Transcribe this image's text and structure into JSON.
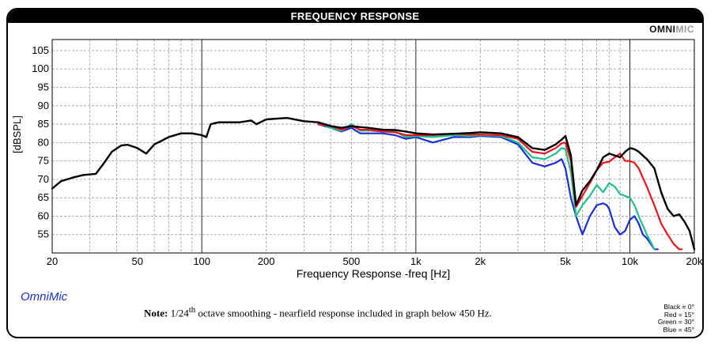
{
  "title": "FREQUENCY RESPONSE",
  "logo": {
    "part1": "OMNI",
    "part2": "MIC"
  },
  "brand": "OmniMic",
  "note": {
    "label": "Note:",
    "text_before": " 1/24",
    "superscript": "th",
    "text_after": " octave smoothing - nearfield response included in graph below 450 Hz."
  },
  "legend": [
    "Black = 0°",
    "Red = 15°",
    "Green = 30°",
    "Blue = 45°"
  ],
  "colors": {
    "black": "#000000",
    "red": "#e8161b",
    "green": "#1fbf8f",
    "blue": "#1a2fd6",
    "grid": "#9a9a9a"
  },
  "chart_data": {
    "type": "line",
    "xscale": "log",
    "xlim": [
      20,
      20000
    ],
    "ylim": [
      50,
      108
    ],
    "xlabel": "Frequency Response -freq [Hz]",
    "ylabel": "[dBSPL]",
    "x_ticks": [
      {
        "value": 20,
        "label": "20"
      },
      {
        "value": 50,
        "label": "50"
      },
      {
        "value": 100,
        "label": "100"
      },
      {
        "value": 200,
        "label": "200"
      },
      {
        "value": 500,
        "label": "500"
      },
      {
        "value": 1000,
        "label": "1k"
      },
      {
        "value": 2000,
        "label": "2k"
      },
      {
        "value": 5000,
        "label": "5k"
      },
      {
        "value": 10000,
        "label": "10k"
      },
      {
        "value": 20000,
        "label": "20k"
      }
    ],
    "y_ticks": [
      55,
      60,
      65,
      70,
      75,
      80,
      85,
      90,
      95,
      100,
      105
    ],
    "series": [
      {
        "name": "Black = 0°",
        "color": "#000000",
        "x": [
          20,
          22,
          25,
          28,
          32,
          35,
          38,
          42,
          45,
          50,
          55,
          60,
          65,
          70,
          80,
          90,
          100,
          105,
          110,
          120,
          150,
          170,
          180,
          200,
          250,
          300,
          350,
          400,
          450,
          500,
          550,
          600,
          700,
          800,
          900,
          1000,
          1200,
          1500,
          1800,
          2000,
          2500,
          3000,
          3500,
          4000,
          4500,
          4800,
          5000,
          5300,
          5600,
          6000,
          6500,
          7000,
          7500,
          8000,
          9000,
          9500,
          10000,
          10500,
          11000,
          12000,
          13000,
          14000,
          15000,
          16000,
          17000,
          18000,
          19000,
          20000
        ],
        "y": [
          67.5,
          69.5,
          70.5,
          71.2,
          71.5,
          74.5,
          77.5,
          79.2,
          79.4,
          78.5,
          77,
          79.5,
          80.5,
          81.5,
          82.5,
          82.5,
          82,
          81.5,
          85,
          85.5,
          85.5,
          86,
          85,
          86.3,
          86.7,
          85.8,
          85.5,
          84.5,
          84,
          84.5,
          84.2,
          84,
          83.5,
          83.4,
          83,
          82.5,
          82.2,
          82.4,
          82.6,
          82.8,
          82.5,
          81.5,
          78.5,
          78,
          79.5,
          80.8,
          81.8,
          76.5,
          63,
          67,
          69.5,
          72.5,
          76,
          77,
          76,
          77.5,
          78.5,
          78.2,
          77.5,
          75.5,
          73,
          66.5,
          62,
          60,
          60.5,
          58.5,
          56,
          51
        ]
      },
      {
        "name": "Red = 15°",
        "color": "#e8161b",
        "x": [
          350,
          400,
          450,
          500,
          550,
          600,
          700,
          800,
          900,
          1000,
          1200,
          1500,
          1800,
          2000,
          2500,
          3000,
          3500,
          4000,
          4500,
          4800,
          5000,
          5300,
          5600,
          6000,
          6500,
          7000,
          7500,
          8000,
          8500,
          9000,
          9500,
          10000,
          10500,
          11000,
          12000,
          13000,
          14000,
          15000,
          16000,
          17000,
          17500
        ],
        "y": [
          85,
          84.5,
          83.5,
          84.5,
          83.5,
          83.5,
          83,
          82.8,
          82,
          82,
          82,
          82.4,
          82.2,
          82.2,
          82,
          81,
          77.5,
          77,
          78.5,
          79.8,
          80,
          75,
          62.5,
          65.5,
          69,
          72.5,
          74.5,
          74.8,
          76,
          77,
          75,
          75,
          74.5,
          73,
          68,
          63,
          58,
          55,
          52.5,
          51,
          51
        ]
      },
      {
        "name": "Green = 30°",
        "color": "#1fbf8f",
        "x": [
          350,
          400,
          450,
          500,
          550,
          600,
          700,
          800,
          900,
          1000,
          1200,
          1500,
          1800,
          2000,
          2500,
          3000,
          3500,
          4000,
          4500,
          4800,
          5000,
          5300,
          5600,
          6000,
          6500,
          7000,
          7500,
          8000,
          8500,
          9000,
          9500,
          10000,
          10500,
          11000,
          12000,
          12500,
          13000
        ],
        "y": [
          85.5,
          84,
          83.2,
          85,
          83.2,
          83.3,
          83,
          83,
          81.5,
          81.8,
          81.5,
          82,
          81.8,
          82,
          81.8,
          80,
          76,
          75.5,
          77,
          78.5,
          78.2,
          72,
          60,
          63,
          65.5,
          68.5,
          66.5,
          69,
          68,
          66,
          65.5,
          65,
          63,
          60,
          55,
          53,
          51
        ]
      },
      {
        "name": "Blue = 45°",
        "color": "#1a2fd6",
        "x": [
          350,
          400,
          450,
          500,
          550,
          600,
          700,
          800,
          900,
          1000,
          1200,
          1500,
          1800,
          2000,
          2500,
          3000,
          3500,
          4000,
          4500,
          4800,
          5000,
          5300,
          5600,
          6000,
          6500,
          7000,
          7500,
          7800,
          8000,
          8500,
          9000,
          9500,
          10000,
          10500,
          11000,
          11500,
          12000,
          12500,
          13000,
          13500
        ],
        "y": [
          85,
          84,
          83,
          84,
          82.5,
          82.5,
          82.5,
          82,
          81,
          81.5,
          80,
          81.5,
          81.5,
          81.8,
          81.5,
          79.5,
          74.5,
          73.5,
          74.5,
          75.5,
          73,
          65,
          60,
          55,
          60,
          63,
          63.5,
          63,
          62,
          57,
          55,
          56,
          59,
          60,
          58,
          55,
          54,
          52.5,
          51,
          51
        ]
      }
    ]
  }
}
